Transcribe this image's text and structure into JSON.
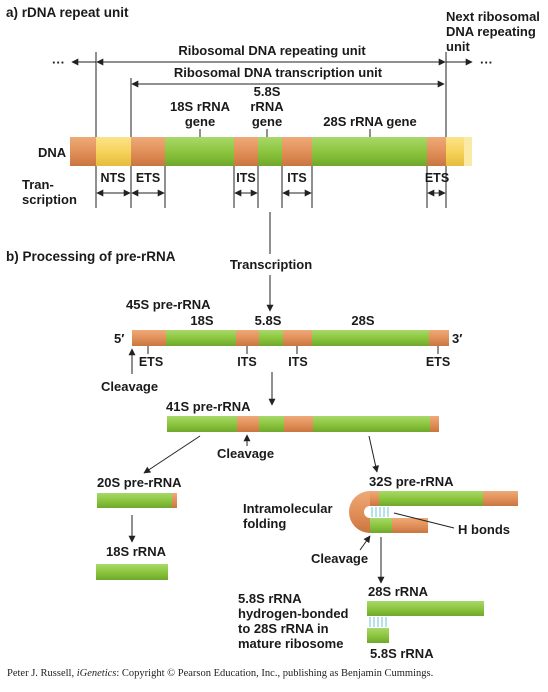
{
  "section_a": {
    "title": "a)   rDNA repeat unit",
    "next_unit": [
      "Next ribosomal",
      "DNA repeating",
      "unit"
    ],
    "repeating_unit": "Ribosomal DNA repeating unit",
    "transcription_unit": "Ribosomal DNA transcription unit",
    "ellipsis": "···",
    "gene_18s": [
      "18S rRNA",
      "gene"
    ],
    "gene_58s": [
      "5.8S",
      "rRNA",
      "gene"
    ],
    "gene_28s": "28S rRNA gene",
    "dna": "DNA",
    "transcription_row": [
      "Tran-",
      "scription"
    ],
    "nts": "NTS",
    "ets": "ETS",
    "its": "ITS"
  },
  "section_b": {
    "title": "b)   Processing of pre-rRNA",
    "transcription": "Transcription",
    "pre45s": "45S pre-rRNA",
    "s18": "18S",
    "s58": "5.8S",
    "s28": "28S",
    "five_prime": "5′",
    "three_prime": "3′",
    "ets": "ETS",
    "its": "ITS",
    "cleavage": "Cleavage",
    "pre41s": "41S pre-rRNA",
    "pre20s": "20S pre-rRNA",
    "pre32s": "32S pre-rRNA",
    "rrna18s": "18S rRNA",
    "intramolecular": [
      "Intramolecular",
      "folding"
    ],
    "h_bonds": "H bonds",
    "rrna28s": "28S rRNA",
    "bonded": [
      "5.8S rRNA",
      "hydrogen-bonded",
      "to 28S rRNA in",
      "mature ribosome"
    ],
    "rrna58s": "5.8S rRNA"
  },
  "colors": {
    "rrna_green": "#8cc63f",
    "spacer_orange": "#e2905a",
    "nts_yellow": "#f6d35a",
    "hbond_cyan": "#8fd3df"
  },
  "credit": {
    "author": "Peter J. Russell, ",
    "book": "iGenetics",
    "rest": ": Copyright © Pearson Education, Inc., publishing as Benjamin Cummings."
  }
}
